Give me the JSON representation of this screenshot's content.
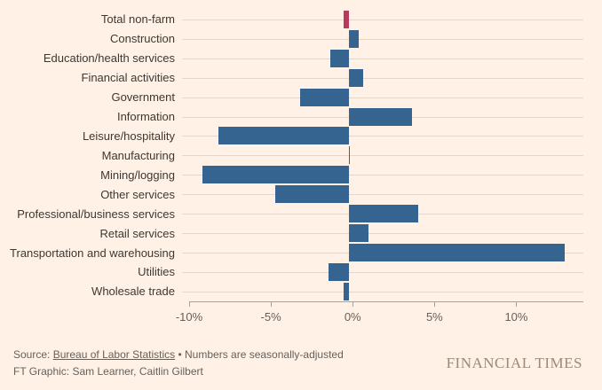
{
  "chart_data": {
    "type": "bar",
    "orientation": "horizontal",
    "categories": [
      "Total non-farm",
      "Construction",
      "Education/health services",
      "Financial activities",
      "Government",
      "Information",
      "Leisure/hospitality",
      "Manufacturing",
      "Mining/logging",
      "Other services",
      "Professional/business services",
      "Retail services",
      "Transportation and warehousing",
      "Utilities",
      "Wholesale trade"
    ],
    "values": [
      -0.3,
      0.6,
      -1.1,
      0.9,
      -2.9,
      3.8,
      -7.8,
      0.1,
      -8.8,
      -4.4,
      4.2,
      1.2,
      13.0,
      -1.2,
      -0.3
    ],
    "unit": "%",
    "xlim": [
      -10,
      14.1
    ],
    "x_ticks": [
      -10,
      -5,
      0,
      5,
      10
    ],
    "x_tick_labels": [
      "-10%",
      "-5%",
      "0%",
      "5%",
      "10%"
    ],
    "grid": "horizontal-row-lines",
    "legend": "none",
    "highlight_category": "Total non-farm"
  },
  "colors": {
    "background": "#fff1e5",
    "bar_blue": "#34648f",
    "bar_red": "#b8395d",
    "grid_line": "#e5d7c8",
    "axis_line": "#a8a099",
    "label_text": "#3d3833",
    "tick_text": "#66605c",
    "footer_text": "#66605c",
    "brand_text": "#9b8a79"
  },
  "footer": {
    "source_prefix": "Source:",
    "source_link": "Bureau of Labor Statistics",
    "source_separator": "•",
    "source_suffix": "Numbers are seasonally-adjusted",
    "credit": "FT Graphic: Sam Learner, Caitlin Gilbert",
    "brand": "FINANCIAL TIMES"
  }
}
